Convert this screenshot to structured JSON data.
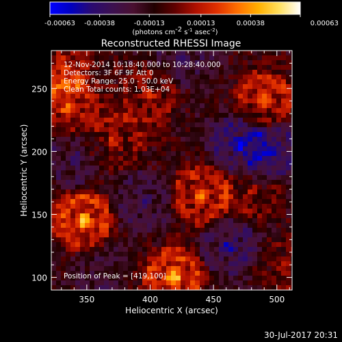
{
  "chart_data": {
    "type": "heatmap",
    "title": "Reconstructed RHESSI Image",
    "xlabel": "Heliocentric X (arcsec)",
    "ylabel": "Heliocentric Y (arcsec)",
    "xlim": [
      322,
      512
    ],
    "ylim": [
      90,
      280
    ],
    "x_ticks": [
      "350",
      "400",
      "450",
      "500"
    ],
    "x_tick_values": [
      350,
      400,
      450,
      500
    ],
    "y_ticks": [
      "100",
      "150",
      "200",
      "250"
    ],
    "y_tick_values": [
      100,
      150,
      200,
      250
    ],
    "colorbar": {
      "range": [
        -0.00063,
        0.00063
      ],
      "tick_labels": [
        "-0.00063",
        "-0.00038",
        "-0.00013",
        "0.00013",
        "0.00038",
        "0.00063"
      ],
      "tick_values": [
        -0.00063,
        -0.00038,
        -0.00013,
        0.00013,
        0.00038,
        0.00063
      ],
      "unit_label": "(photons cm",
      "unit_sup1": "-2",
      "unit_mid": " s",
      "unit_sup2": "-1",
      "unit_end": " asec",
      "unit_sup3": "-2",
      "unit_close": ")",
      "colors": [
        "#0000ff",
        "#0000c0",
        "#2a0a70",
        "#3c1050",
        "#4a1030",
        "#200000",
        "#600000",
        "#b01000",
        "#e03000",
        "#ff7000",
        "#ffb000",
        "#ffe060",
        "#ffffff"
      ]
    },
    "annotations": {
      "line1": "12-Nov-2014 10:18:40.000 to 10:28:40.000",
      "line2": "Detectors: 3F 6F 9F  Att 0",
      "line3": "Energy Range: 25.0 - 50.0 keV",
      "line4": "Clean     Total counts: 1.03E+04",
      "peak": "Position of Peak = [419,100]"
    },
    "sources": [
      {
        "x": 347,
        "y": 145,
        "value": 0.00063
      },
      {
        "x": 419,
        "y": 100,
        "value": 0.00063
      },
      {
        "x": 440,
        "y": 165,
        "value": 0.0005
      },
      {
        "x": 490,
        "y": 240,
        "value": 0.0005
      },
      {
        "x": 335,
        "y": 235,
        "value": 0.0004
      },
      {
        "x": 372,
        "y": 208,
        "value": 0.0003
      },
      {
        "x": 400,
        "y": 245,
        "value": 0.00028
      },
      {
        "x": 330,
        "y": 268,
        "value": 0.00035
      },
      {
        "x": 480,
        "y": 168,
        "value": 0.00025
      },
      {
        "x": 505,
        "y": 110,
        "value": 0.00022
      },
      {
        "x": 470,
        "y": 205,
        "value": -0.00045
      },
      {
        "x": 498,
        "y": 200,
        "value": -0.0004
      },
      {
        "x": 462,
        "y": 125,
        "value": -0.0004
      },
      {
        "x": 395,
        "y": 160,
        "value": -0.0003
      },
      {
        "x": 340,
        "y": 195,
        "value": -0.0003
      },
      {
        "x": 425,
        "y": 275,
        "value": -0.00025
      },
      {
        "x": 360,
        "y": 110,
        "value": -0.0002
      }
    ]
  },
  "footer": {
    "date": "30-Jul-2017 20:31"
  }
}
